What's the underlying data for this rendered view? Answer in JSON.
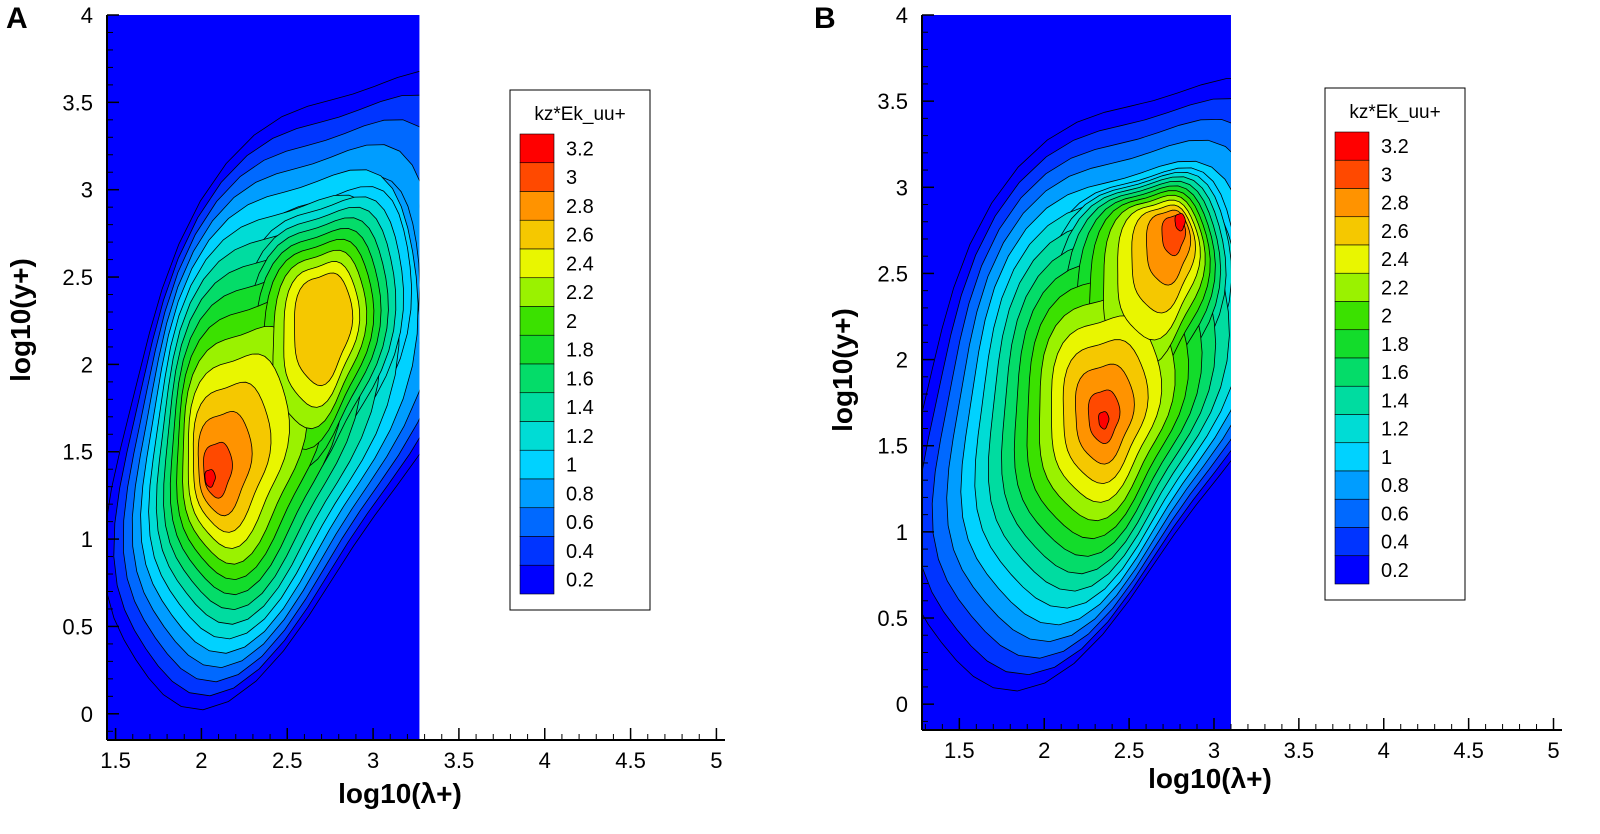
{
  "panels": [
    {
      "label": "A",
      "xlabel": "log10(λ+)",
      "ylabel": "log10(y+)",
      "legend_title": "kz*Ek_uu+"
    },
    {
      "label": "B",
      "xlabel": "log10(λ+)",
      "ylabel": "log10(y+)",
      "legend_title": "kz*Ek_uu+"
    }
  ],
  "colors": {
    "background_level": "#0000ff",
    "axis": "#000000",
    "contour_line": "#000000"
  },
  "chart_data": [
    {
      "type": "heatmap",
      "title": "",
      "xlabel": "log10(λ+)",
      "ylabel": "log10(y+)",
      "xlim": [
        1.45,
        5.05
      ],
      "ylim": [
        -0.15,
        4.0
      ],
      "xticks": [
        1.5,
        2,
        2.5,
        3,
        3.5,
        4,
        4.5,
        5
      ],
      "yticks": [
        0,
        0.5,
        1,
        1.5,
        2,
        2.5,
        3,
        3.5,
        4
      ],
      "data_extent_x": [
        1.45,
        3.27
      ],
      "legend": {
        "title": "kz*Ek_uu+",
        "placement": "right",
        "levels": [
          3.2,
          3,
          2.8,
          2.6,
          2.4,
          2.2,
          2,
          1.8,
          1.6,
          1.4,
          1.2,
          1,
          0.8,
          0.6,
          0.4,
          0.2
        ]
      },
      "peaks": [
        {
          "x": 2.05,
          "y": 1.35,
          "value": 3.3
        },
        {
          "x": 2.75,
          "y": 2.3,
          "value": 2.6
        }
      ],
      "grid": false
    },
    {
      "type": "heatmap",
      "title": "",
      "xlabel": "log10(λ+)",
      "ylabel": "log10(y+)",
      "xlim": [
        1.28,
        5.05
      ],
      "ylim": [
        -0.15,
        4.0
      ],
      "xticks": [
        1.5,
        2,
        2.5,
        3,
        3.5,
        4,
        4.5,
        5
      ],
      "yticks": [
        0,
        0.5,
        1,
        1.5,
        2,
        2.5,
        3,
        3.5,
        4
      ],
      "data_extent_x": [
        1.28,
        3.1
      ],
      "legend": {
        "title": "kz*Ek_uu+",
        "placement": "right",
        "levels": [
          3.2,
          3,
          2.8,
          2.6,
          2.4,
          2.2,
          2,
          1.8,
          1.6,
          1.4,
          1.2,
          1,
          0.8,
          0.6,
          0.4,
          0.2
        ]
      },
      "peaks": [
        {
          "x": 2.35,
          "y": 1.65,
          "value": 3.35
        },
        {
          "x": 2.8,
          "y": 2.8,
          "value": 3.3
        }
      ],
      "grid": false
    }
  ]
}
